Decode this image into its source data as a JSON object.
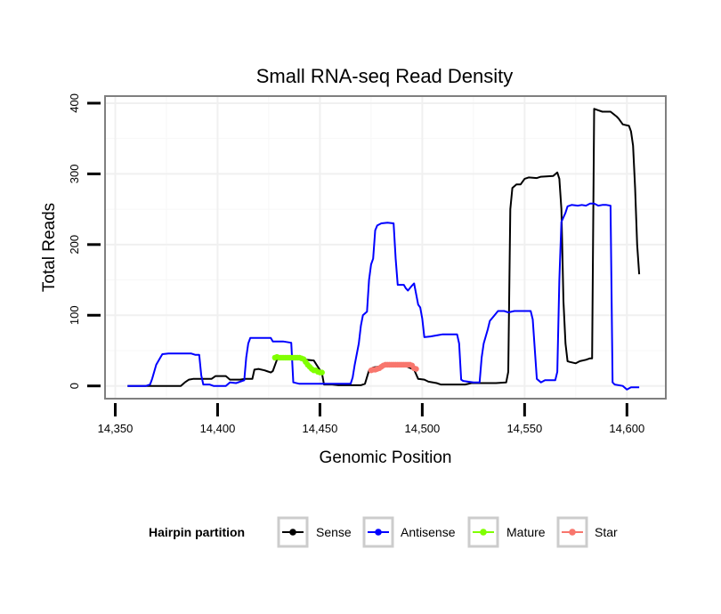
{
  "chart_data": {
    "type": "line",
    "title": "Small RNA-seq Read Density",
    "xlabel": "Genomic Position",
    "ylabel": "Total Reads",
    "xlim": [
      14345,
      14619
    ],
    "ylim": [
      -18,
      410
    ],
    "x_ticks": [
      14350,
      14400,
      14450,
      14500,
      14550,
      14600
    ],
    "x_tick_labels": [
      "14,350",
      "14,400",
      "14,450",
      "14,500",
      "14,550",
      "14,600"
    ],
    "y_ticks": [
      0,
      100,
      200,
      300,
      400
    ],
    "y_tick_labels": [
      "0",
      "100",
      "200",
      "300",
      "400"
    ],
    "grid": true,
    "legend": {
      "title": "Hairpin partition",
      "position": "bottom",
      "entries": [
        "Sense",
        "Antisense",
        "Mature",
        "Star"
      ]
    },
    "series": [
      {
        "name": "Sense",
        "color": "#000000",
        "type": "line",
        "points": [
          [
            14356,
            0
          ],
          [
            14382,
            0
          ],
          [
            14384,
            5
          ],
          [
            14386,
            9
          ],
          [
            14388,
            10
          ],
          [
            14393,
            10
          ],
          [
            14397,
            10
          ],
          [
            14399,
            14
          ],
          [
            14404,
            14
          ],
          [
            14406,
            9
          ],
          [
            14411,
            9
          ],
          [
            14413,
            10
          ],
          [
            14417,
            10
          ],
          [
            14418,
            23
          ],
          [
            14420,
            24
          ],
          [
            14423,
            22
          ],
          [
            14424,
            21
          ],
          [
            14426,
            19
          ],
          [
            14427,
            21
          ],
          [
            14429,
            37
          ],
          [
            14431,
            39
          ],
          [
            14436,
            39
          ],
          [
            14440,
            38
          ],
          [
            14447,
            36
          ],
          [
            14451,
            18
          ],
          [
            14452,
            2
          ],
          [
            14456,
            2
          ],
          [
            14459,
            1
          ],
          [
            14468,
            1
          ],
          [
            14470,
            1
          ],
          [
            14472,
            3
          ],
          [
            14474,
            22
          ],
          [
            14476,
            26
          ],
          [
            14480,
            28
          ],
          [
            14487,
            28
          ],
          [
            14492,
            28
          ],
          [
            14496,
            23
          ],
          [
            14498,
            10
          ],
          [
            14501,
            9
          ],
          [
            14503,
            6
          ],
          [
            14507,
            4
          ],
          [
            14509,
            2
          ],
          [
            14521,
            2
          ],
          [
            14524,
            4
          ],
          [
            14536,
            4
          ],
          [
            14541,
            5
          ],
          [
            14542,
            20
          ],
          [
            14543,
            250
          ],
          [
            14544,
            280
          ],
          [
            14546,
            285
          ],
          [
            14548,
            285
          ],
          [
            14550,
            293
          ],
          [
            14552,
            295
          ],
          [
            14556,
            294
          ],
          [
            14558,
            296
          ],
          [
            14564,
            297
          ],
          [
            14566,
            302
          ],
          [
            14567,
            293
          ],
          [
            14568,
            250
          ],
          [
            14569,
            120
          ],
          [
            14570,
            60
          ],
          [
            14571,
            35
          ],
          [
            14572,
            34
          ],
          [
            14575,
            32
          ],
          [
            14577,
            35
          ],
          [
            14580,
            37
          ],
          [
            14582,
            39
          ],
          [
            14583,
            39
          ],
          [
            14584,
            392
          ],
          [
            14586,
            390
          ],
          [
            14588,
            388
          ],
          [
            14592,
            388
          ],
          [
            14595,
            381
          ],
          [
            14596,
            378
          ],
          [
            14598,
            370
          ],
          [
            14601,
            368
          ],
          [
            14602,
            360
          ],
          [
            14603,
            340
          ],
          [
            14604,
            280
          ],
          [
            14605,
            200
          ],
          [
            14606,
            158
          ]
        ]
      },
      {
        "name": "Antisense",
        "color": "#0000ff",
        "type": "line",
        "points": [
          [
            14356,
            0
          ],
          [
            14365,
            0
          ],
          [
            14367,
            2
          ],
          [
            14368,
            10
          ],
          [
            14370,
            30
          ],
          [
            14372,
            40
          ],
          [
            14373,
            45
          ],
          [
            14376,
            46
          ],
          [
            14387,
            46
          ],
          [
            14389,
            44
          ],
          [
            14391,
            44
          ],
          [
            14392,
            15
          ],
          [
            14393,
            2
          ],
          [
            14396,
            2
          ],
          [
            14398,
            0
          ],
          [
            14404,
            0
          ],
          [
            14406,
            5
          ],
          [
            14409,
            4
          ],
          [
            14413,
            8
          ],
          [
            14414,
            40
          ],
          [
            14415,
            60
          ],
          [
            14416,
            68
          ],
          [
            14418,
            68
          ],
          [
            14426,
            68
          ],
          [
            14427,
            63
          ],
          [
            14432,
            63
          ],
          [
            14436,
            61
          ],
          [
            14437,
            5
          ],
          [
            14440,
            3
          ],
          [
            14445,
            3
          ],
          [
            14453,
            3
          ],
          [
            14462,
            3
          ],
          [
            14465,
            3
          ],
          [
            14466,
            12
          ],
          [
            14467,
            30
          ],
          [
            14469,
            60
          ],
          [
            14470,
            85
          ],
          [
            14471,
            100
          ],
          [
            14473,
            105
          ],
          [
            14474,
            150
          ],
          [
            14475,
            172
          ],
          [
            14476,
            180
          ],
          [
            14477,
            220
          ],
          [
            14478,
            227
          ],
          [
            14480,
            230
          ],
          [
            14483,
            231
          ],
          [
            14486,
            230
          ],
          [
            14487,
            180
          ],
          [
            14488,
            143
          ],
          [
            14491,
            143
          ],
          [
            14492,
            138
          ],
          [
            14493,
            135
          ],
          [
            14495,
            142
          ],
          [
            14496,
            145
          ],
          [
            14497,
            130
          ],
          [
            14498,
            115
          ],
          [
            14499,
            111
          ],
          [
            14500,
            95
          ],
          [
            14501,
            69
          ],
          [
            14504,
            70
          ],
          [
            14508,
            72
          ],
          [
            14510,
            73
          ],
          [
            14517,
            73
          ],
          [
            14518,
            60
          ],
          [
            14519,
            9
          ],
          [
            14520,
            7
          ],
          [
            14525,
            5
          ],
          [
            14528,
            5
          ],
          [
            14529,
            40
          ],
          [
            14530,
            60
          ],
          [
            14532,
            80
          ],
          [
            14533,
            92
          ],
          [
            14535,
            99
          ],
          [
            14537,
            106
          ],
          [
            14540,
            106
          ],
          [
            14542,
            104
          ],
          [
            14545,
            106
          ],
          [
            14553,
            106
          ],
          [
            14554,
            94
          ],
          [
            14556,
            10
          ],
          [
            14558,
            5
          ],
          [
            14560,
            8
          ],
          [
            14562,
            8
          ],
          [
            14565,
            8
          ],
          [
            14566,
            20
          ],
          [
            14567,
            150
          ],
          [
            14568,
            232
          ],
          [
            14570,
            245
          ],
          [
            14571,
            254
          ],
          [
            14573,
            256
          ],
          [
            14576,
            255
          ],
          [
            14578,
            256
          ],
          [
            14580,
            255
          ],
          [
            14582,
            258
          ],
          [
            14584,
            258
          ],
          [
            14586,
            255
          ],
          [
            14588,
            256
          ],
          [
            14590,
            256
          ],
          [
            14592,
            255
          ],
          [
            14593,
            5
          ],
          [
            14594,
            2
          ],
          [
            14598,
            0
          ],
          [
            14600,
            -5
          ],
          [
            14602,
            -2
          ],
          [
            14605,
            -2
          ],
          [
            14606,
            -2
          ]
        ]
      },
      {
        "name": "Mature",
        "color": "#80ff00",
        "type": "line+points",
        "points": [
          [
            14428,
            40
          ],
          [
            14429,
            41
          ],
          [
            14430,
            40
          ],
          [
            14431,
            40
          ],
          [
            14432,
            40
          ],
          [
            14433,
            40
          ],
          [
            14434,
            40
          ],
          [
            14435,
            40
          ],
          [
            14436,
            40
          ],
          [
            14437,
            40
          ],
          [
            14438,
            40
          ],
          [
            14439,
            40
          ],
          [
            14440,
            40
          ],
          [
            14441,
            39
          ],
          [
            14442,
            38
          ],
          [
            14443,
            34
          ],
          [
            14444,
            30
          ],
          [
            14445,
            27
          ],
          [
            14446,
            24
          ],
          [
            14447,
            22
          ],
          [
            14448,
            22
          ],
          [
            14449,
            20
          ],
          [
            14450,
            19
          ],
          [
            14451,
            19
          ]
        ]
      },
      {
        "name": "Star",
        "color": "#f8766d",
        "type": "line+points",
        "points": [
          [
            14475,
            22
          ],
          [
            14476,
            23
          ],
          [
            14477,
            23
          ],
          [
            14478,
            24
          ],
          [
            14479,
            25
          ],
          [
            14480,
            27
          ],
          [
            14481,
            29
          ],
          [
            14482,
            30
          ],
          [
            14483,
            30
          ],
          [
            14484,
            30
          ],
          [
            14485,
            30
          ],
          [
            14486,
            30
          ],
          [
            14487,
            30
          ],
          [
            14488,
            30
          ],
          [
            14489,
            30
          ],
          [
            14490,
            30
          ],
          [
            14491,
            30
          ],
          [
            14492,
            30
          ],
          [
            14493,
            30
          ],
          [
            14494,
            30
          ],
          [
            14495,
            29
          ],
          [
            14496,
            25
          ],
          [
            14497,
            24
          ]
        ]
      }
    ]
  }
}
